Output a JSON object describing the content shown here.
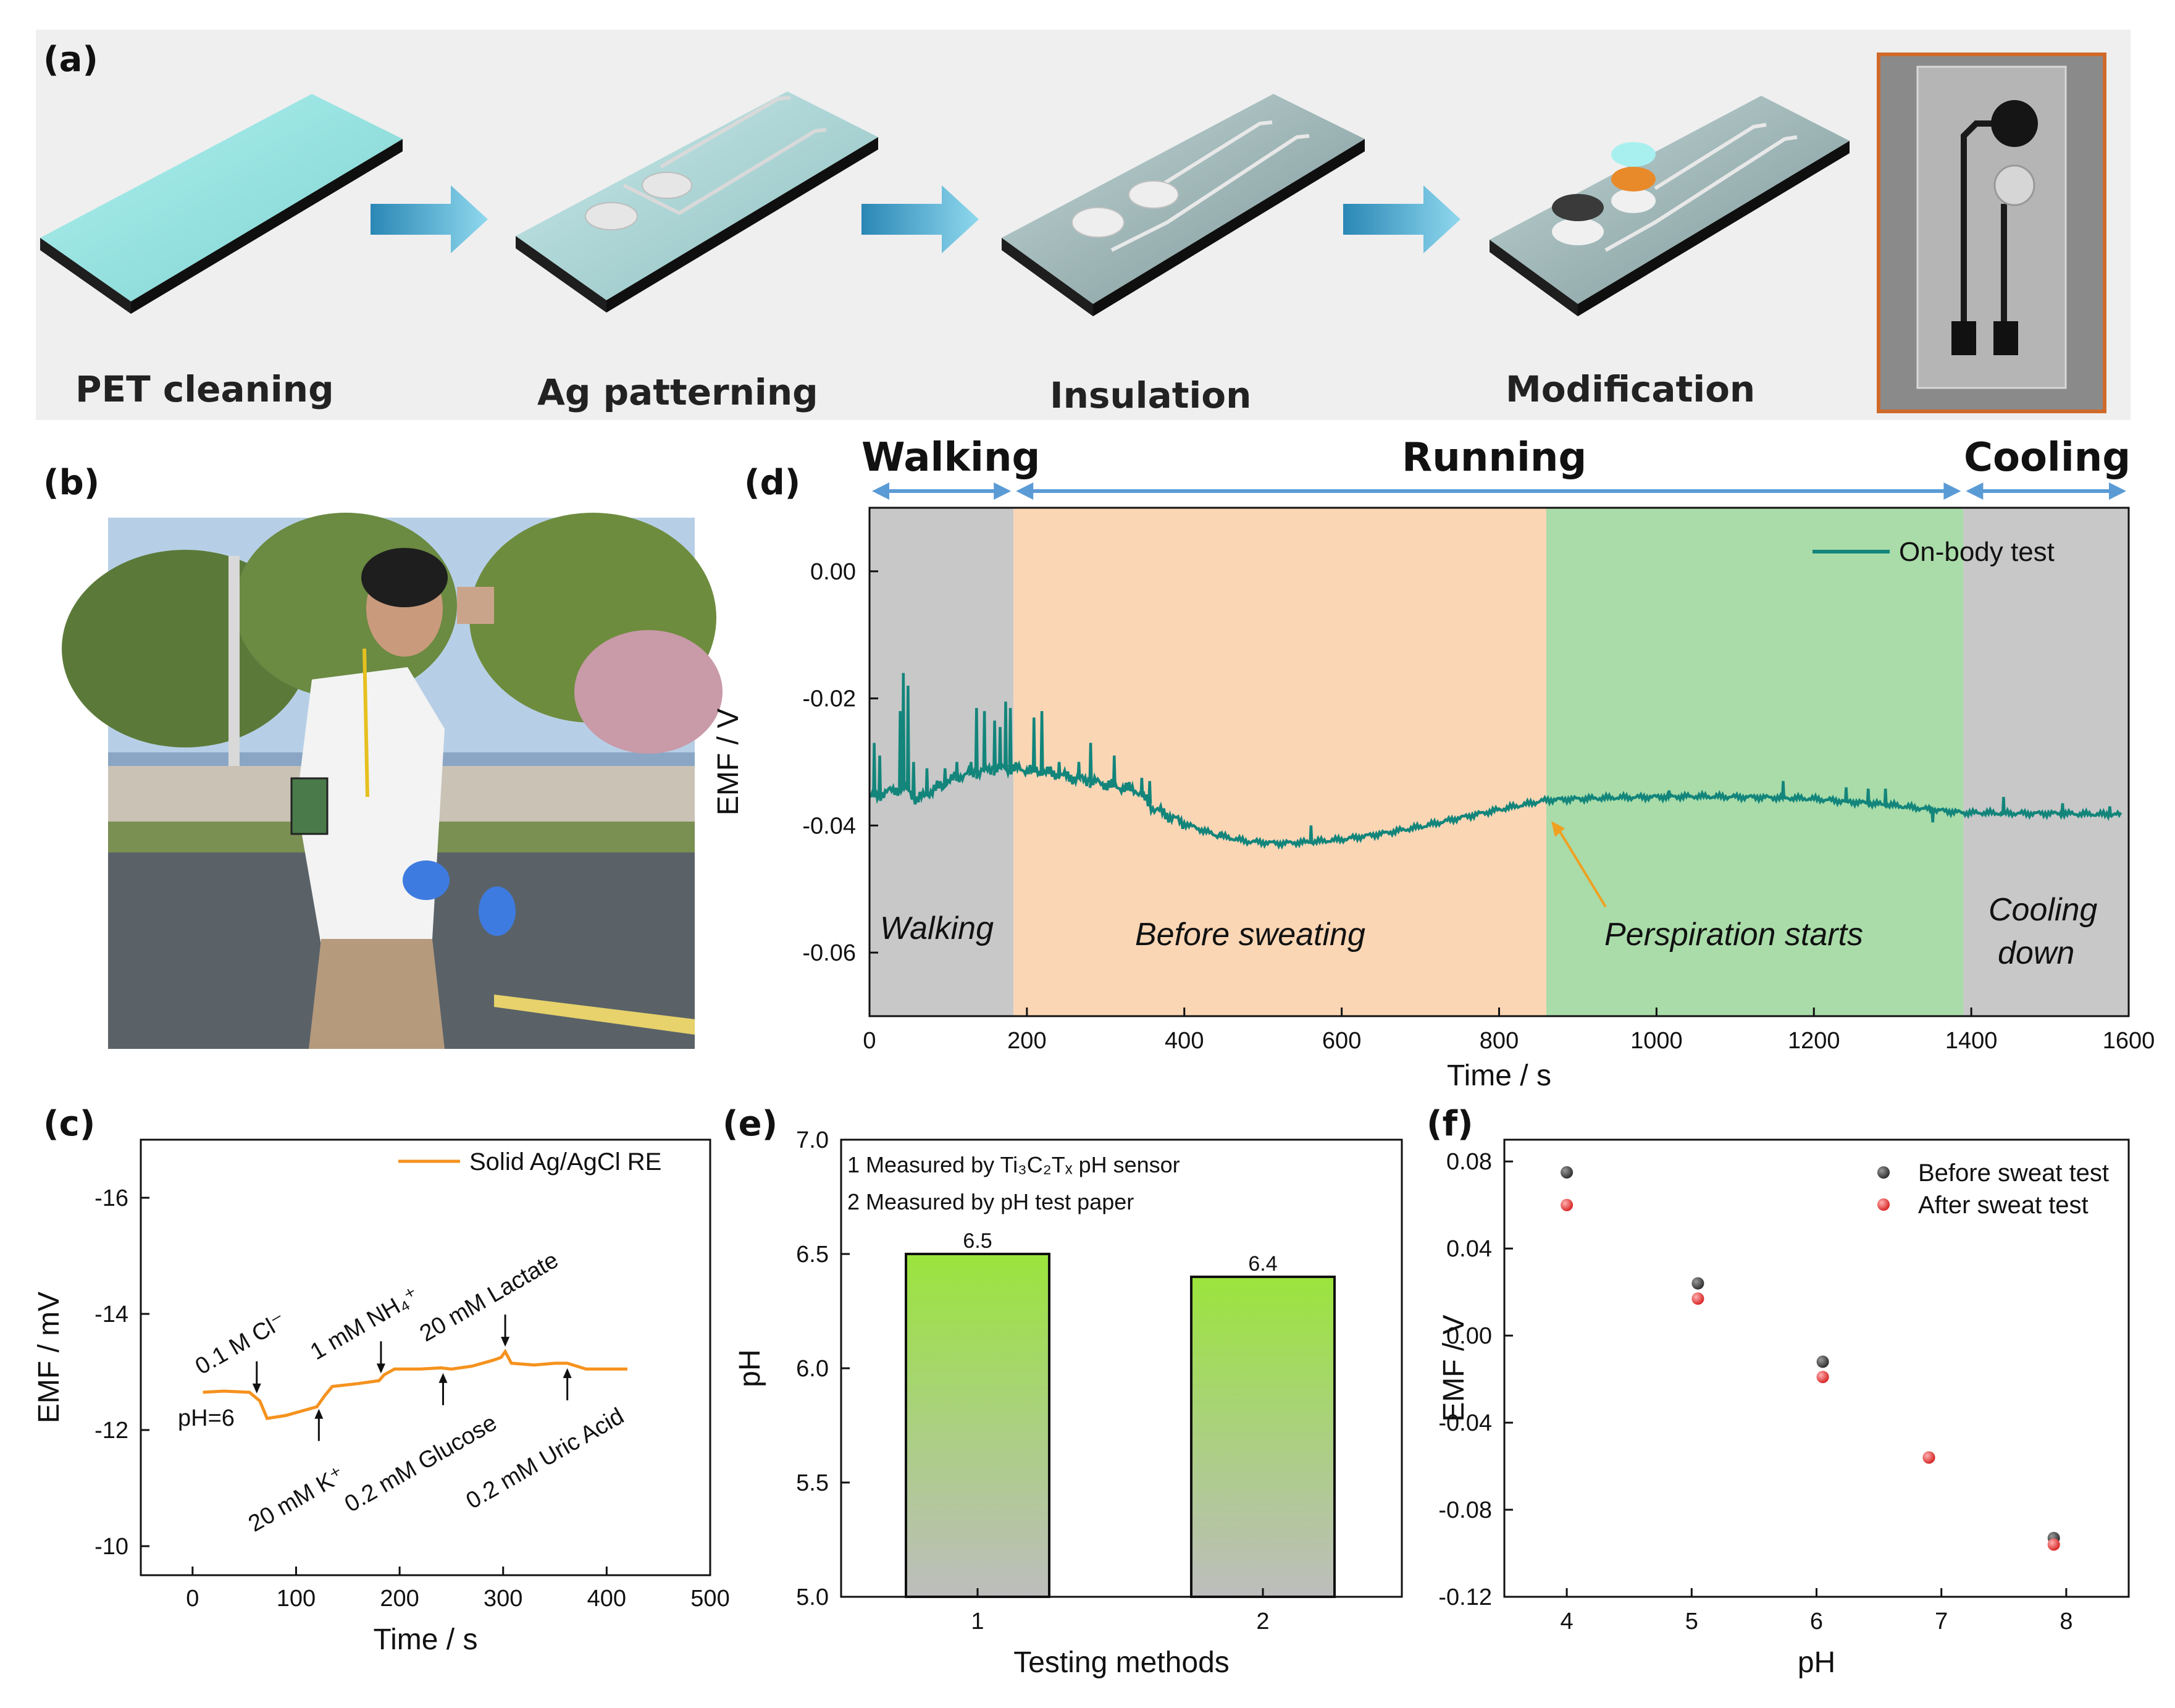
{
  "panel_a": {
    "label": "(a)",
    "steps": [
      "PET cleaning",
      "Ag patterning",
      "Insulation",
      "Modification"
    ]
  },
  "panel_b": {
    "label": "(b)"
  },
  "panel_d": {
    "label": "(d)",
    "phases": [
      "Walking",
      "Running",
      "Cooling"
    ],
    "regions": [
      "Walking",
      "Before sweating",
      "Perspiration starts",
      "Cooling",
      "down"
    ],
    "colors": {
      "walking": "#c8c8c8",
      "before": "#fbd6b5",
      "perspiration": "#a9dca9",
      "cooling": "#c8c8c8",
      "line": "#13857b"
    }
  },
  "panel_c": {
    "label": "(c)"
  },
  "panel_e": {
    "label": "(e)"
  },
  "panel_f": {
    "label": "(f)"
  },
  "chart_data": [
    {
      "id": "d",
      "type": "line",
      "xlabel": "Time / s",
      "ylabel": "EMF / V",
      "xlim": [
        0,
        1600
      ],
      "ylim": [
        -0.07,
        0.01
      ],
      "xticks": [
        0,
        200,
        400,
        600,
        800,
        1000,
        1200,
        1400,
        1600
      ],
      "yticks": [
        0.0,
        -0.02,
        -0.04,
        -0.06
      ],
      "ytick_labels": [
        "0.00",
        "-0.02",
        "-0.04",
        "-0.06"
      ],
      "regions": [
        {
          "name": "Walking",
          "from": 0,
          "to": 183
        },
        {
          "name": "Before sweating",
          "from": 183,
          "to": 860
        },
        {
          "name": "Perspiration starts",
          "from": 860,
          "to": 1390
        },
        {
          "name": "Cooling down",
          "from": 1390,
          "to": 1600
        }
      ],
      "annotation": {
        "text": "Perspiration starts",
        "arrow_to": [
          860,
          -0.0385
        ]
      },
      "series": [
        {
          "name": "On-body test",
          "x": [
            0,
            10,
            20,
            30,
            40,
            50,
            60,
            80,
            100,
            120,
            140,
            160,
            183,
            220,
            260,
            300,
            340,
            360,
            400,
            440,
            480,
            520,
            560,
            600,
            650,
            700,
            750,
            800,
            860,
            900,
            950,
            1000,
            1050,
            1100,
            1150,
            1200,
            1250,
            1300,
            1350,
            1390,
            1420,
            1460,
            1500,
            1550,
            1590
          ],
          "y": [
            -0.0355,
            -0.0352,
            -0.0348,
            -0.0345,
            -0.034,
            -0.0345,
            -0.036,
            -0.0345,
            -0.033,
            -0.032,
            -0.0315,
            -0.031,
            -0.031,
            -0.0315,
            -0.0325,
            -0.0335,
            -0.0345,
            -0.0372,
            -0.0397,
            -0.0415,
            -0.0425,
            -0.0428,
            -0.0426,
            -0.0422,
            -0.0413,
            -0.0402,
            -0.0388,
            -0.0375,
            -0.036,
            -0.0358,
            -0.0356,
            -0.0355,
            -0.0354,
            -0.0355,
            -0.0356,
            -0.0358,
            -0.0363,
            -0.0368,
            -0.0375,
            -0.038,
            -0.038,
            -0.0381,
            -0.0381,
            -0.0382,
            -0.0383
          ],
          "spikes": [
            [
              5,
              -0.027
            ],
            [
              12,
              -0.029
            ],
            [
              38,
              -0.022
            ],
            [
              42,
              -0.016
            ],
            [
              48,
              -0.018
            ],
            [
              55,
              -0.03
            ],
            [
              72,
              -0.031
            ],
            [
              95,
              -0.031
            ],
            [
              110,
              -0.03
            ],
            [
              128,
              -0.03
            ],
            [
              135,
              -0.0215
            ],
            [
              145,
              -0.022
            ],
            [
              158,
              -0.0235
            ],
            [
              165,
              -0.0245
            ],
            [
              172,
              -0.0205
            ],
            [
              178,
              -0.0215
            ],
            [
              208,
              -0.023
            ],
            [
              218,
              -0.022
            ],
            [
              240,
              -0.03
            ],
            [
              265,
              -0.03
            ],
            [
              280,
              -0.027
            ],
            [
              310,
              -0.029
            ],
            [
              345,
              -0.0325
            ],
            [
              355,
              -0.033
            ],
            [
              445,
              -0.041
            ],
            [
              560,
              -0.04
            ],
            [
              1015,
              -0.0345
            ],
            [
              1160,
              -0.033
            ],
            [
              1240,
              -0.034
            ],
            [
              1268,
              -0.0342
            ],
            [
              1290,
              -0.0342
            ],
            [
              1350,
              -0.0395
            ],
            [
              1440,
              -0.0355
            ],
            [
              1515,
              -0.0365
            ],
            [
              1575,
              -0.037
            ]
          ]
        }
      ]
    },
    {
      "id": "c",
      "type": "line",
      "xlabel": "Time / s",
      "ylabel": "EMF / mV",
      "xlim": [
        -50,
        500
      ],
      "ylim": [
        -9.5,
        -17
      ],
      "xticks": [
        0,
        100,
        200,
        300,
        400,
        500
      ],
      "yticks": [
        -16,
        -14,
        -12,
        -10
      ],
      "series": [
        {
          "name": "Solid Ag/AgCl RE",
          "x": [
            10,
            30,
            55,
            65,
            72,
            90,
            110,
            120,
            128,
            135,
            160,
            180,
            185,
            195,
            220,
            240,
            250,
            270,
            290,
            298,
            302,
            308,
            330,
            350,
            362,
            380,
            400,
            420
          ],
          "y": [
            -12.65,
            -12.67,
            -12.65,
            -12.5,
            -12.2,
            -12.25,
            -12.35,
            -12.4,
            -12.6,
            -12.75,
            -12.8,
            -12.85,
            -12.95,
            -13.05,
            -13.05,
            -13.07,
            -13.05,
            -13.1,
            -13.2,
            -13.25,
            -13.35,
            -13.15,
            -13.12,
            -13.15,
            -13.15,
            -13.05,
            -13.05,
            -13.05
          ]
        }
      ],
      "annotations": [
        {
          "text": "pH=6"
        },
        {
          "text": "0.1 M Cl⁻",
          "at": 62
        },
        {
          "text": "20 mM K⁺",
          "at": 122
        },
        {
          "text": "1 mM NH₄⁺",
          "at": 182
        },
        {
          "text": "0.2 mM Glucose",
          "at": 242
        },
        {
          "text": "20 mM Lactate",
          "at": 302
        },
        {
          "text": "0.2 mM Uric Acid",
          "at": 362
        }
      ]
    },
    {
      "id": "e",
      "type": "bar",
      "xlabel": "Testing methods",
      "ylabel": "pH",
      "categories": [
        "1",
        "2"
      ],
      "values": [
        6.5,
        6.4
      ],
      "data_labels": [
        "6.5",
        "6.4"
      ],
      "ylim": [
        5.0,
        7.0
      ],
      "yticks": [
        5.0,
        5.5,
        6.0,
        6.5,
        7.0
      ],
      "ytick_labels": [
        "5.0",
        "5.5",
        "6.0",
        "6.5",
        "7.0"
      ],
      "legend_text": [
        "1 Measured by Ti₃C₂Tₓ pH sensor",
        "2 Measured by pH test paper"
      ]
    },
    {
      "id": "f",
      "type": "scatter",
      "xlabel": "pH",
      "ylabel": "EMF / V",
      "xlim": [
        3.5,
        8.5
      ],
      "ylim": [
        -0.12,
        0.09
      ],
      "xticks": [
        4,
        5,
        6,
        7,
        8
      ],
      "yticks": [
        0.08,
        0.04,
        0.0,
        -0.04,
        -0.08,
        -0.12
      ],
      "ytick_labels": [
        "0.08",
        "0.04",
        "0.00",
        "-0.04",
        "-0.08",
        "-0.12"
      ],
      "series": [
        {
          "name": "Before sweat test",
          "color": "#3c3c3c",
          "x": [
            4.0,
            5.05,
            6.05,
            6.9,
            7.9
          ],
          "y": [
            0.075,
            0.024,
            -0.012,
            -0.056,
            -0.093
          ]
        },
        {
          "name": "After sweat test",
          "color": "#e03030",
          "x": [
            4.0,
            5.05,
            6.05,
            6.9,
            7.9
          ],
          "y": [
            0.06,
            0.017,
            -0.019,
            -0.056,
            -0.096
          ]
        }
      ]
    }
  ]
}
